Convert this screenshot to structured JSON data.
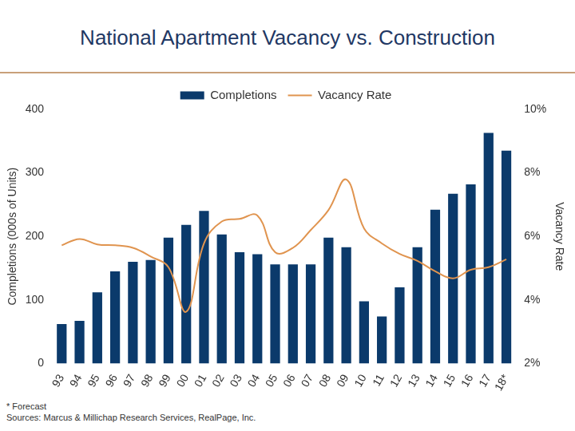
{
  "chart_data": {
    "type": "bar",
    "title": "National Apartment Vacancy vs. Construction",
    "y_label": "Completions (000s of Units)",
    "y2_label": "Vacancy Rate",
    "categories": [
      "93",
      "94",
      "95",
      "96",
      "97",
      "98",
      "99",
      "00",
      "01",
      "02",
      "03",
      "04",
      "05",
      "06",
      "07",
      "08",
      "09",
      "10",
      "11",
      "12",
      "13",
      "14",
      "15",
      "16",
      "17",
      "18*"
    ],
    "series": [
      {
        "name": "Completions",
        "color": "#0b3a6b",
        "values": [
          62,
          67,
          112,
          145,
          160,
          163,
          198,
          218,
          240,
          203,
          175,
          172,
          156,
          156,
          156,
          198,
          183,
          98,
          74,
          120,
          183,
          242,
          267,
          282,
          363,
          335
        ]
      },
      {
        "name": "Vacancy Rate",
        "color": "#e0944f",
        "type": "line",
        "axis": "y2",
        "values": [
          5.72,
          5.92,
          5.75,
          5.72,
          5.64,
          5.37,
          5.03,
          3.63,
          5.78,
          6.47,
          6.55,
          6.66,
          5.5,
          5.64,
          6.2,
          6.83,
          7.79,
          6.25,
          5.78,
          5.45,
          5.23,
          4.9,
          4.68,
          4.95,
          5.03,
          5.28
        ]
      }
    ],
    "ylim": [
      0,
      400
    ],
    "yticks": [
      0,
      100,
      200,
      300,
      400
    ],
    "y2lim": [
      2,
      10
    ],
    "y2ticks": [
      {
        "value": 2,
        "label": "2%"
      },
      {
        "value": 4,
        "label": "4%"
      },
      {
        "value": 6,
        "label": "6%"
      },
      {
        "value": 8,
        "label": "8%"
      },
      {
        "value": 10,
        "label": "10%"
      }
    ],
    "grid": false,
    "legend": "top",
    "notes": [
      "* Forecast",
      "Sources: Marcus & Millichap Research Services, RealPage, Inc."
    ]
  }
}
